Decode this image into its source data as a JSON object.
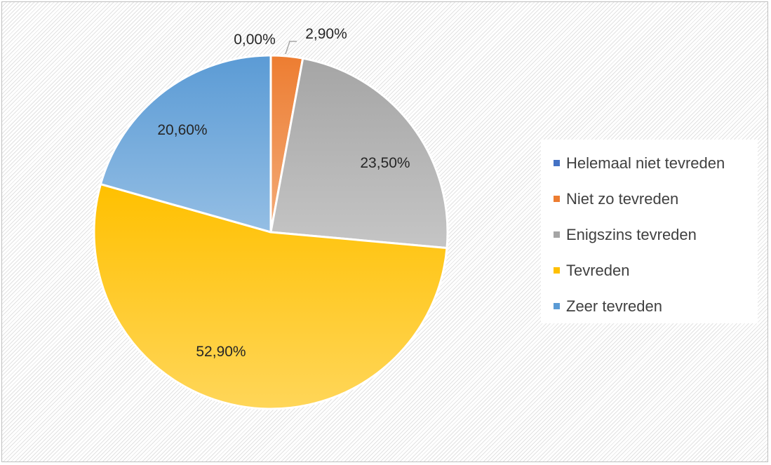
{
  "chart_data": {
    "type": "pie",
    "categories": [
      "Helemaal niet tevreden",
      "Niet zo tevreden",
      "Enigszins tevreden",
      "Tevreden",
      "Zeer tevreden"
    ],
    "values": [
      0.0,
      2.9,
      23.5,
      52.9,
      20.6
    ],
    "data_labels": [
      "0,00%",
      "2,90%",
      "23,50%",
      "52,90%",
      "20,60%"
    ],
    "colors": [
      "#4472c4",
      "#ed7d31",
      "#a5a5a5",
      "#ffc000",
      "#5b9bd5"
    ],
    "legend": {
      "placement": "right"
    },
    "title": ""
  }
}
